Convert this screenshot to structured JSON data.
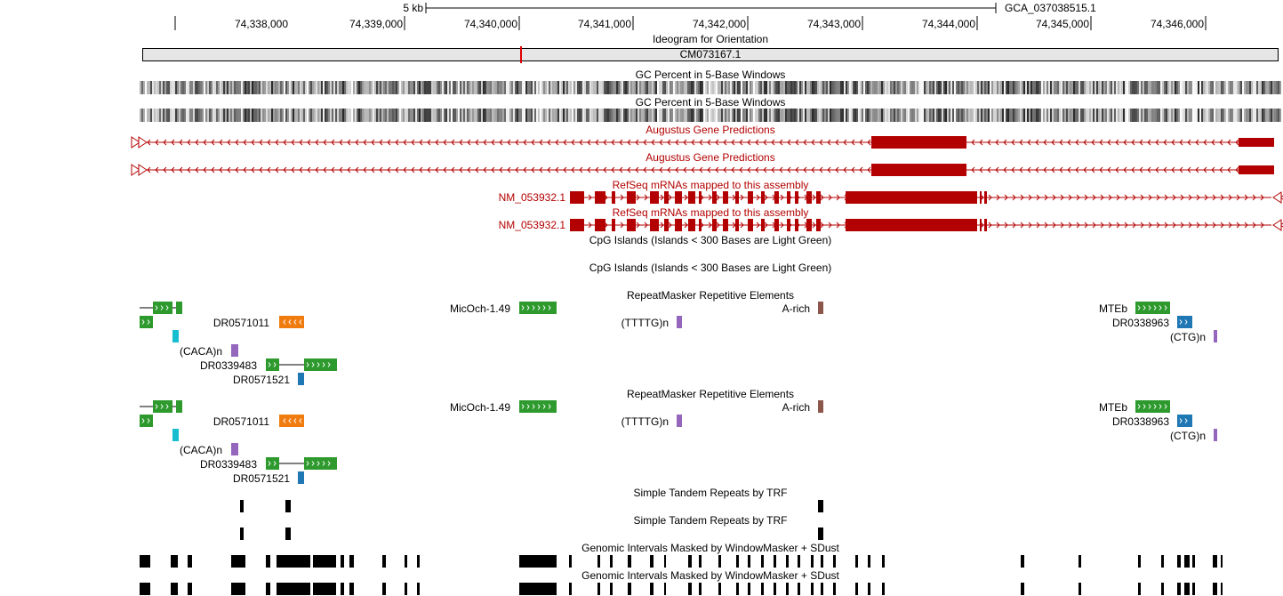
{
  "ruler": {
    "scale_label": "5 kb",
    "assembly": "GCA_037038515.1",
    "ticks": [
      "74,338,000",
      "74,339,000",
      "74,340,000",
      "74,341,000",
      "74,342,000",
      "74,343,000",
      "74,344,000",
      "74,345,000",
      "74,346,000"
    ]
  },
  "ideogram": {
    "title": "Ideogram for Orientation",
    "chromosome": "CM073167.1",
    "highlight_color": "#e00000"
  },
  "tracks": {
    "gc_percent": "GC Percent in 5-Base Windows",
    "augustus": "Augustus Gene Predictions",
    "refseq": "RefSeq mRNAs mapped to this assembly",
    "refseq_item": "NM_053932.1",
    "cpg": "CpG Islands (Islands < 300 Bases are Light Green)",
    "repeatmasker": "RepeatMasker Repetitive Elements",
    "trf": "Simple Tandem Repeats by TRF",
    "windowmasker": "Genomic Intervals Masked by WindowMasker + SDust"
  },
  "repeats": {
    "micoch": "MicOch-1.49",
    "arich": "A-rich",
    "mteb": "MTEb",
    "dr0571011": "DR0571011",
    "tttg": "(TTTTG)n",
    "dr0338963": "DR0338963",
    "ctg": "(CTG)n",
    "caca": "(CACA)n",
    "dr0339483": "DR0339483",
    "dr0571521": "DR0571521"
  },
  "colors": {
    "gene": "#b30000",
    "repeat_green": "#2e9a2e",
    "repeat_orange": "#f07c0f",
    "repeat_purple": "#9467bd",
    "repeat_brown": "#8c564b",
    "repeat_blue": "#1f77b4",
    "repeat_cyan": "#17becf",
    "ideogram_fill": "#e6e6e6"
  }
}
